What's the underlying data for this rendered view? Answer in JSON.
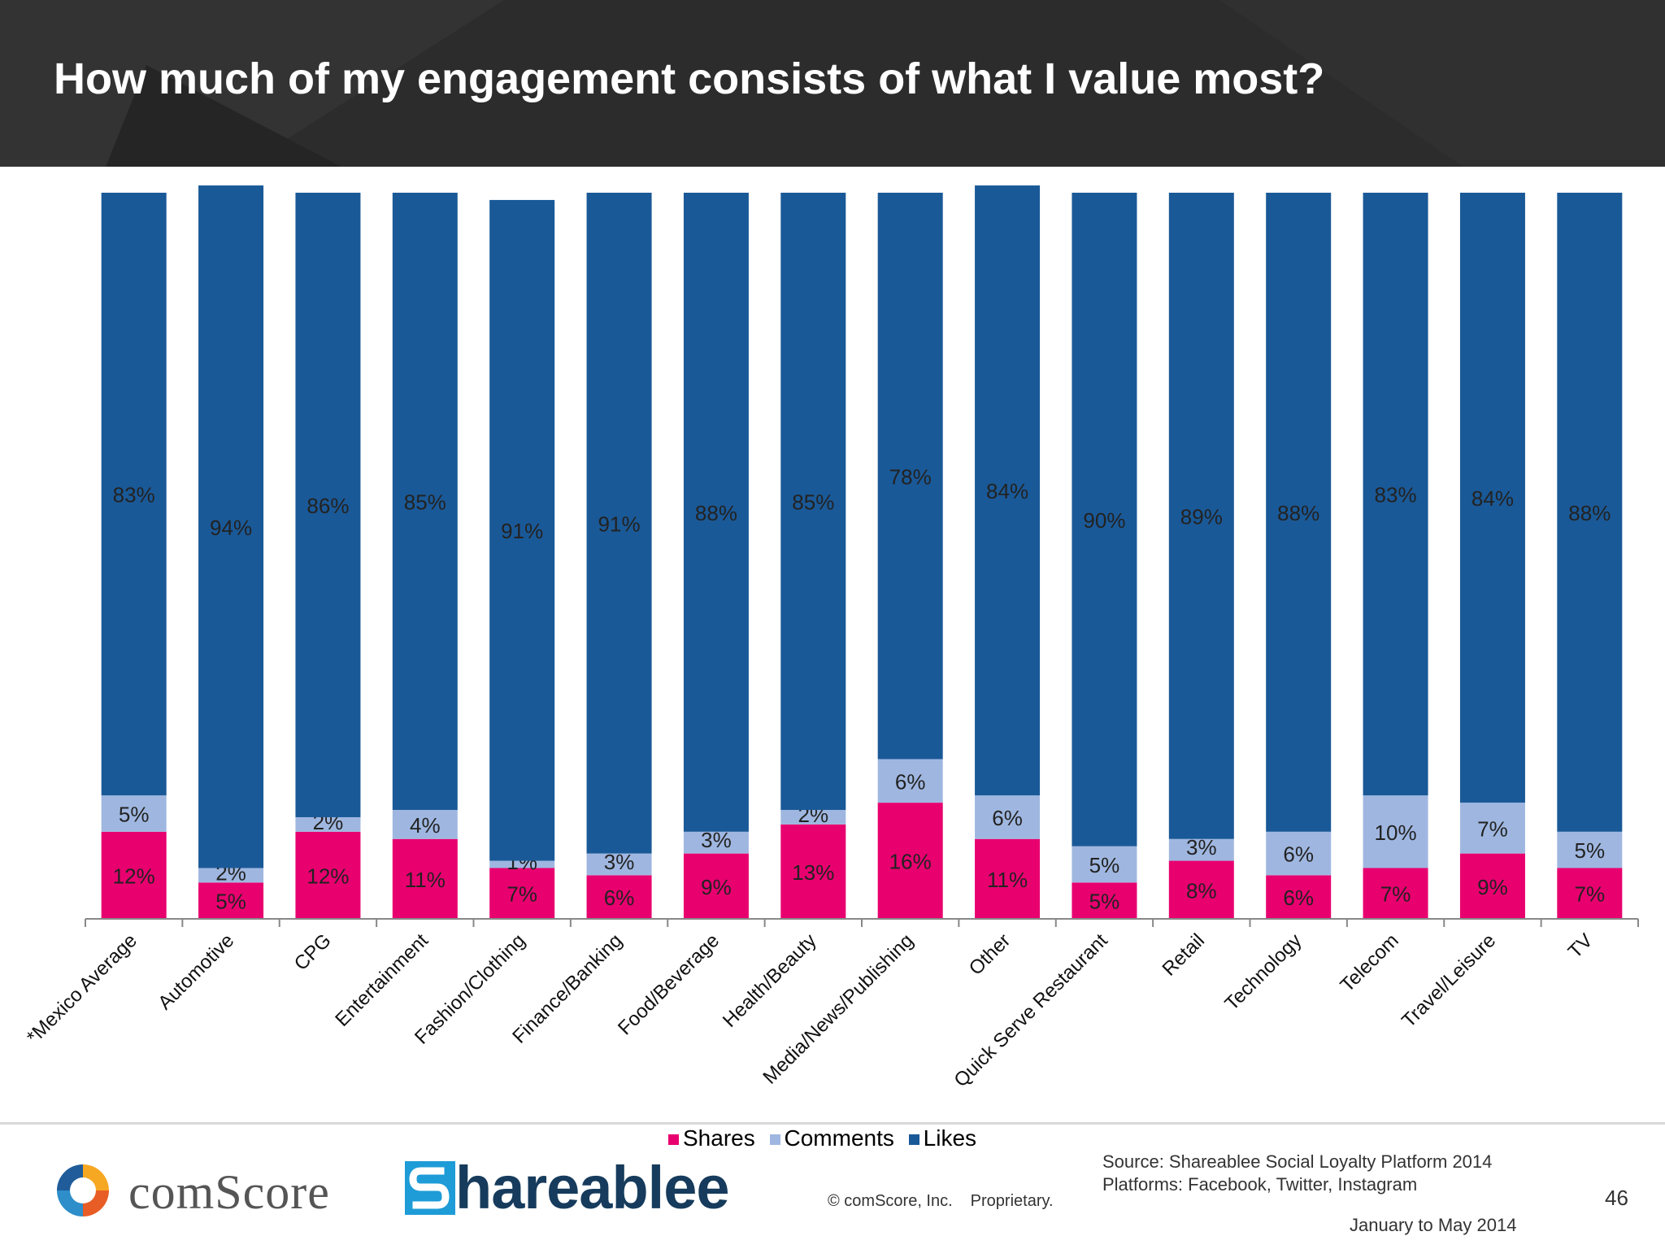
{
  "slide": {
    "title": "How much of my engagement consists of what I value most?",
    "page_number": "46",
    "source_line1": "Source: Shareablee Social Loyalty Platform 2014",
    "source_line2": "Platforms: Facebook, Twitter, Instagram",
    "date_range": "January to May 2014",
    "copyright": "© comScore, Inc.",
    "proprietary": "Proprietary."
  },
  "logos": {
    "comscore_text": "comScore",
    "shareablee_text": "hareablee"
  },
  "legend": [
    {
      "label": "Shares",
      "color": "#e8006f"
    },
    {
      "label": "Comments",
      "color": "#9fb7e0"
    },
    {
      "label": "Likes",
      "color": "#1a5997"
    }
  ],
  "chart_data": {
    "type": "bar",
    "stacked": true,
    "percent_stacked": true,
    "legend_position": "bottom",
    "grid": false,
    "ylim": [
      0,
      100
    ],
    "categories": [
      "*Mexico Average",
      "Automotive",
      "CPG",
      "Entertainment",
      "Fashion/Clothing",
      "Finance/Banking",
      "Food/Beverage",
      "Health/Beauty",
      "Media/News/Publishing",
      "Other",
      "Quick Serve Restaurant",
      "Retail",
      "Technology",
      "Telecom",
      "Travel/Leisure",
      "TV"
    ],
    "series": [
      {
        "name": "Shares",
        "color": "#e8006f",
        "values": [
          12,
          5,
          12,
          11,
          7,
          6,
          9,
          13,
          16,
          11,
          5,
          8,
          6,
          7,
          9,
          7
        ],
        "labels": [
          "12%",
          "5%",
          "12%",
          "11%",
          "7%",
          "6%",
          "9%",
          "13%",
          "16%",
          "11%",
          "5%",
          "8%",
          "6%",
          "7%",
          "9%",
          "7%"
        ]
      },
      {
        "name": "Comments",
        "color": "#9fb7e0",
        "values": [
          5,
          2,
          2,
          4,
          1,
          3,
          3,
          2,
          6,
          6,
          5,
          3,
          6,
          10,
          7,
          5
        ],
        "labels": [
          "5%",
          "2%",
          "2%",
          "4%",
          "1%",
          "3%",
          "3%",
          "2%",
          "6%",
          "6%",
          "5%",
          "3%",
          "6%",
          "10%",
          "7%",
          "5%"
        ]
      },
      {
        "name": "Likes",
        "color": "#1a5997",
        "values": [
          83,
          94,
          86,
          85,
          91,
          91,
          88,
          85,
          78,
          84,
          90,
          89,
          88,
          83,
          84,
          88
        ],
        "labels": [
          "83%",
          "94%",
          "86%",
          "85%",
          "91%",
          "91%",
          "88%",
          "85%",
          "78%",
          "84%",
          "90%",
          "89%",
          "88%",
          "83%",
          "84%",
          "88%"
        ]
      }
    ]
  }
}
